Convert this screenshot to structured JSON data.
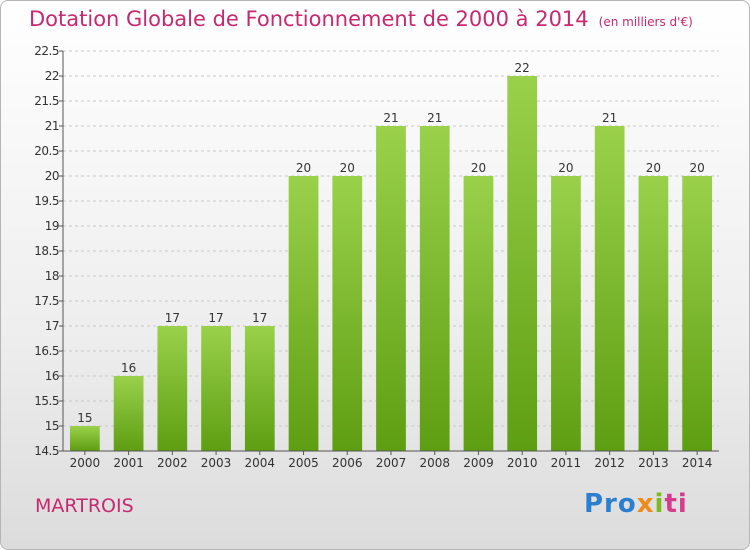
{
  "chart_data": {
    "type": "bar",
    "title": "Dotation Globale de Fonctionnement de 2000 à 2014",
    "subtitle": "(en milliers d'€)",
    "categories": [
      "2000",
      "2001",
      "2002",
      "2003",
      "2004",
      "2005",
      "2006",
      "2007",
      "2008",
      "2009",
      "2010",
      "2011",
      "2012",
      "2013",
      "2014"
    ],
    "values": [
      15,
      16,
      17,
      17,
      17,
      20,
      20,
      21,
      21,
      20,
      22,
      20,
      21,
      20,
      20
    ],
    "value_labels": [
      "15",
      "16",
      "17",
      "17",
      "17",
      "20",
      "20",
      "21",
      "21",
      "20",
      "22",
      "20",
      "21",
      "20",
      "20"
    ],
    "ylim": [
      14.5,
      22.5
    ],
    "yticks": [
      "14.5",
      "15",
      "15.5",
      "16",
      "16.5",
      "17",
      "17.5",
      "18",
      "18.5",
      "19",
      "19.5",
      "20",
      "20.5",
      "21",
      "21.5",
      "22",
      "22.5"
    ],
    "ytick_values": [
      14.5,
      15,
      15.5,
      16,
      16.5,
      17,
      17.5,
      18,
      18.5,
      19,
      19.5,
      20,
      20.5,
      21,
      21.5,
      22,
      22.5
    ],
    "grid": true,
    "bar_color": "#8cc63f"
  },
  "commune": "MARTROIS",
  "logo": {
    "p1": "Pro",
    "p2": "x",
    "p3": "i",
    "p4": "ti",
    "full": "Proxiti"
  }
}
